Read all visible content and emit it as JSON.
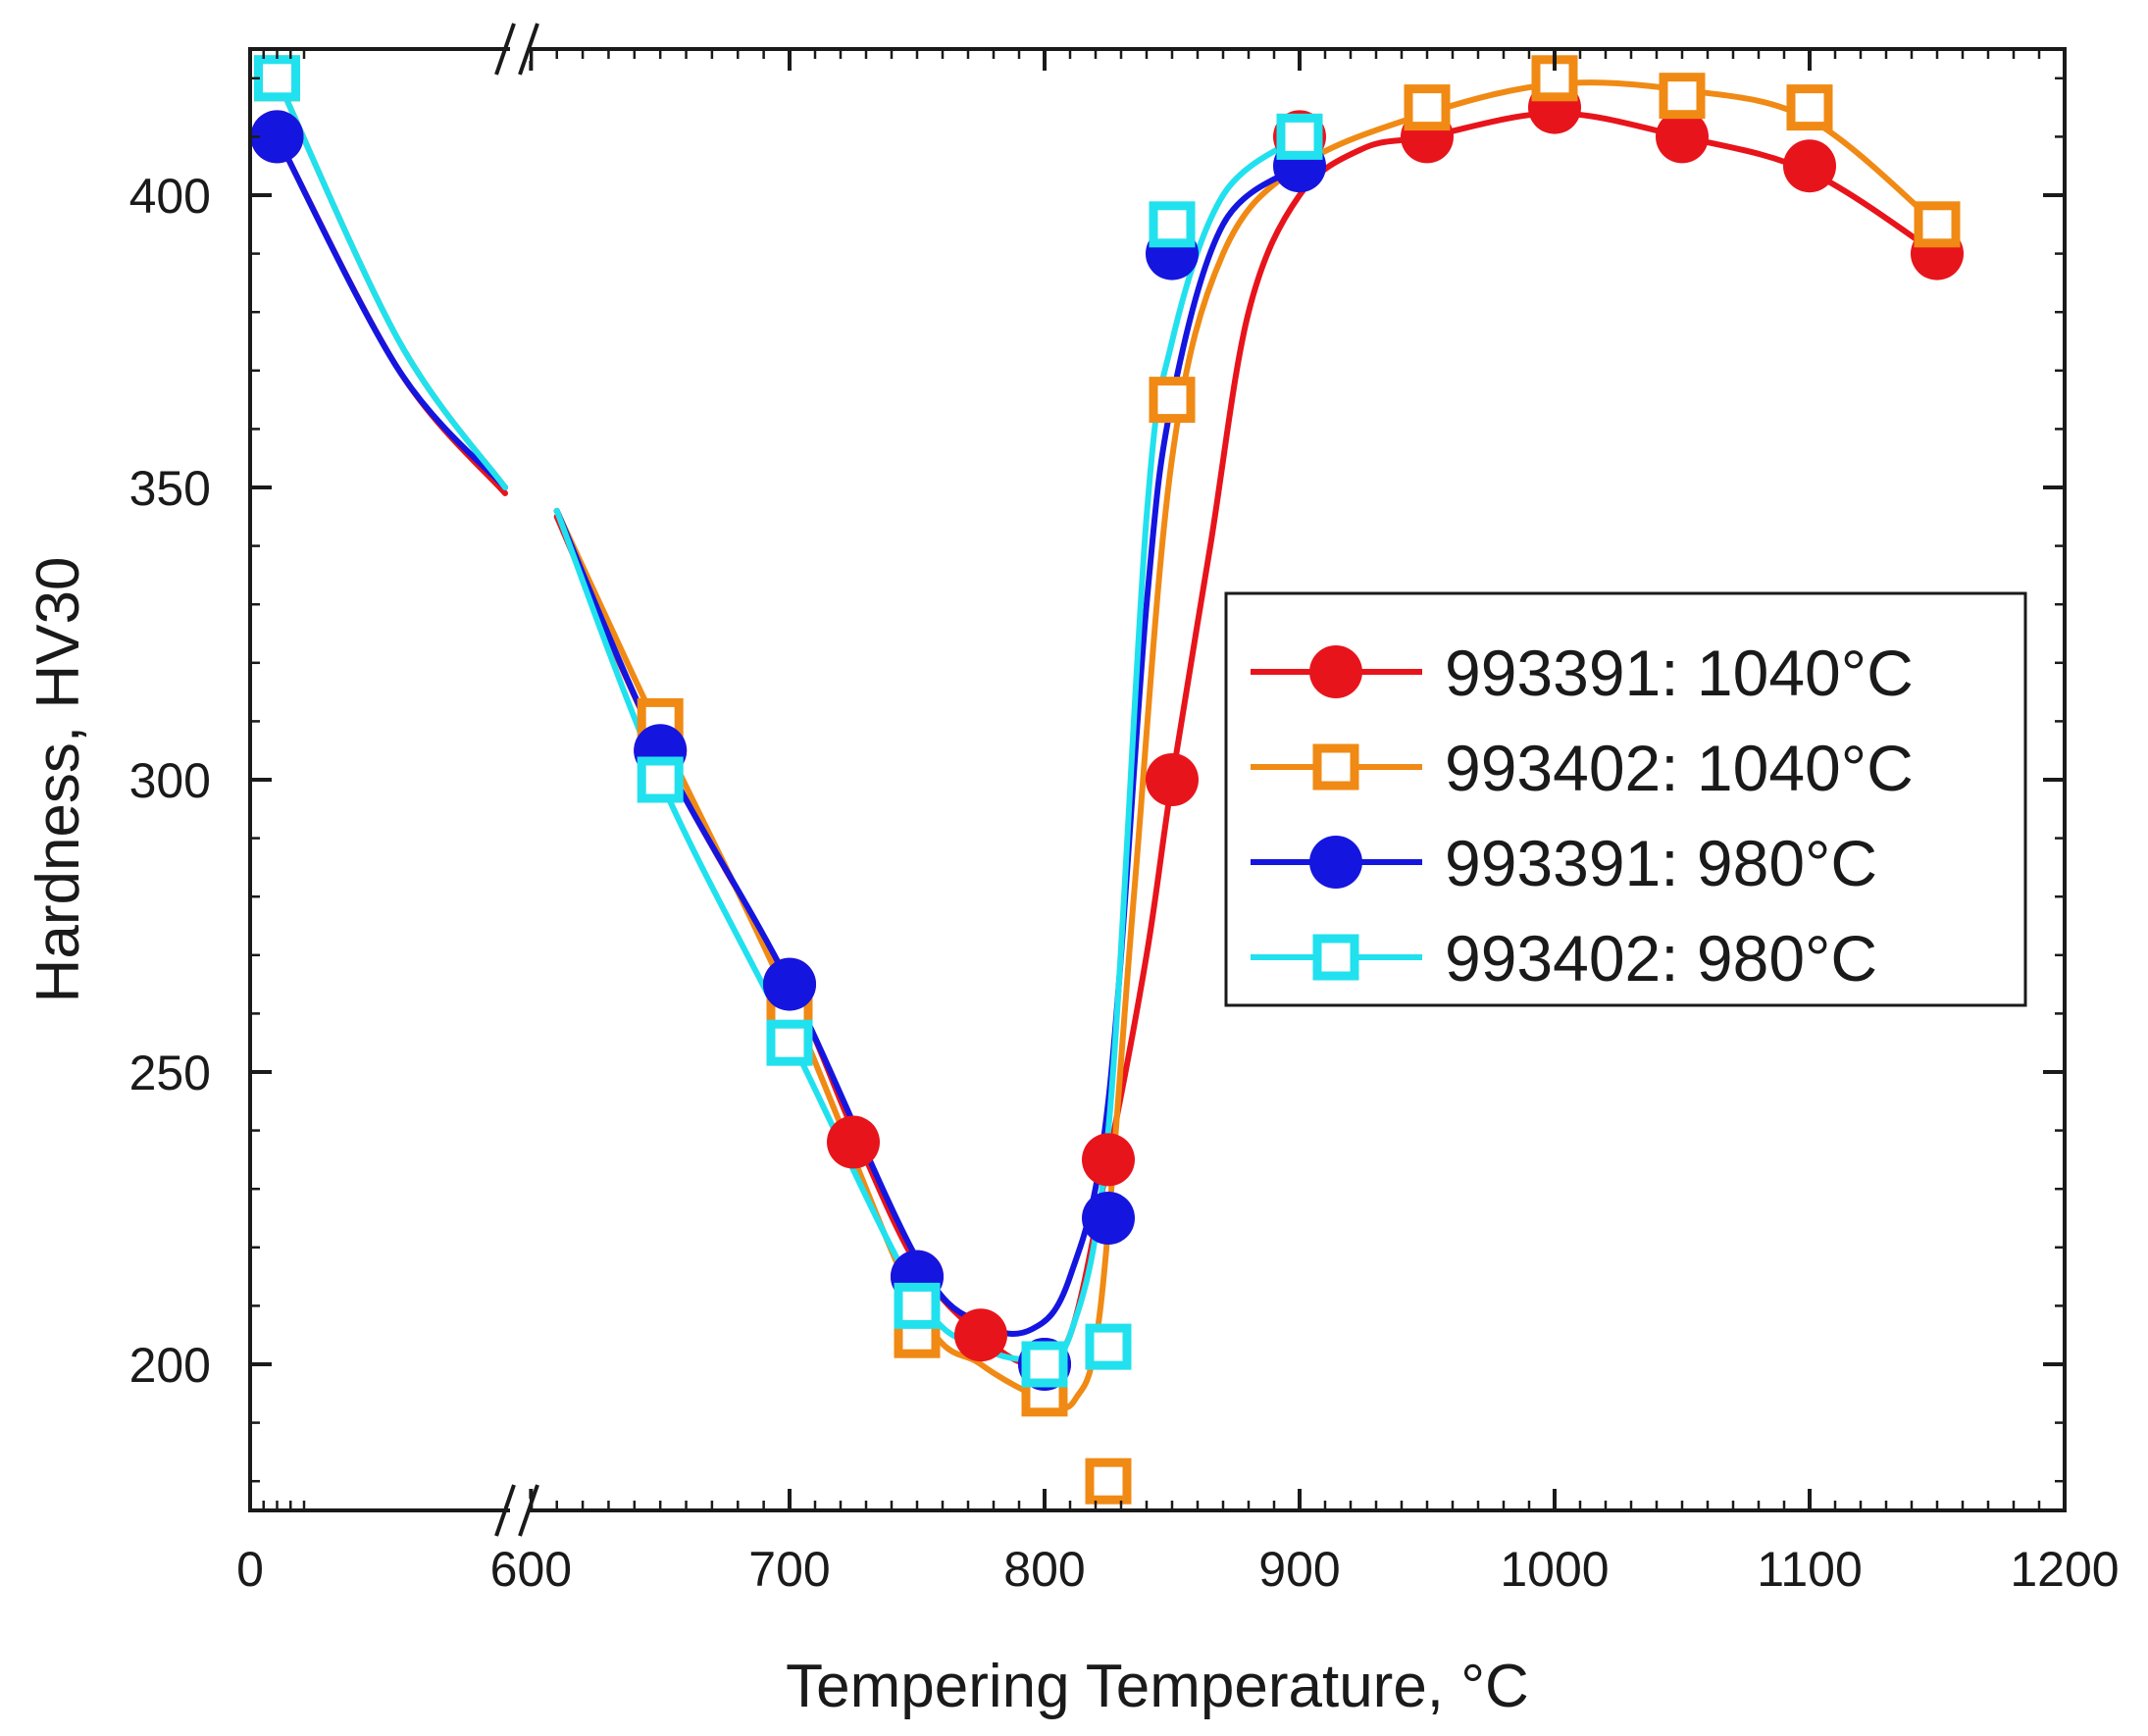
{
  "chart_data": {
    "type": "line",
    "title": "",
    "xlabel": "Tempering Temperature, °C",
    "ylabel": "Hardness, HV30",
    "xlim": [
      0,
      1200
    ],
    "ylim": [
      175,
      425
    ],
    "axis_break": {
      "axis": "x",
      "from": 40,
      "to": 590
    },
    "x_ticks": [
      {
        "value": 0,
        "label": "0"
      },
      {
        "value": 600,
        "label": "600"
      },
      {
        "value": 700,
        "label": "700"
      },
      {
        "value": 800,
        "label": "800"
      },
      {
        "value": 900,
        "label": "900"
      },
      {
        "value": 1000,
        "label": "1000"
      },
      {
        "value": 1100,
        "label": "1100"
      },
      {
        "value": 1200,
        "label": "1200"
      }
    ],
    "y_ticks": [
      {
        "value": 200,
        "label": "200"
      },
      {
        "value": 250,
        "label": "250"
      },
      {
        "value": 300,
        "label": "300"
      },
      {
        "value": 350,
        "label": "350"
      },
      {
        "value": 400,
        "label": "400"
      }
    ],
    "grid": false,
    "legend_position": "center-right",
    "series": [
      {
        "name": "993391: 1040°C",
        "color": "#e8141b",
        "marker": "filled-circle",
        "points": [
          [
            20,
            410
          ],
          [
            650,
            305
          ],
          [
            700,
            265
          ],
          [
            725,
            238
          ],
          [
            750,
            215
          ],
          [
            775,
            205
          ],
          [
            800,
            200
          ],
          [
            825,
            235
          ],
          [
            850,
            300
          ],
          [
            900,
            410
          ],
          [
            950,
            410
          ],
          [
            1000,
            415
          ],
          [
            1050,
            410
          ],
          [
            1100,
            405
          ],
          [
            1150,
            390
          ]
        ],
        "curve": [
          [
            20,
            410
          ],
          [
            300,
            370
          ],
          [
            590,
            349
          ],
          [
            610,
            345
          ],
          [
            650,
            305
          ],
          [
            700,
            265
          ],
          [
            725,
            240
          ],
          [
            750,
            217
          ],
          [
            775,
            205
          ],
          [
            795,
            200
          ],
          [
            810,
            205
          ],
          [
            825,
            235
          ],
          [
            840,
            270
          ],
          [
            850,
            300
          ],
          [
            865,
            340
          ],
          [
            880,
            380
          ],
          [
            900,
            400
          ],
          [
            925,
            408
          ],
          [
            950,
            410
          ],
          [
            1000,
            414
          ],
          [
            1050,
            410
          ],
          [
            1100,
            404
          ],
          [
            1150,
            390
          ]
        ]
      },
      {
        "name": "993402: 1040°C",
        "color": "#f08a14",
        "marker": "open-square",
        "points": [
          [
            20,
            420
          ],
          [
            650,
            310
          ],
          [
            700,
            260
          ],
          [
            750,
            205
          ],
          [
            800,
            195
          ],
          [
            825,
            180
          ],
          [
            850,
            365
          ],
          [
            900,
            410
          ],
          [
            950,
            415
          ],
          [
            1000,
            420
          ],
          [
            1050,
            417
          ],
          [
            1100,
            415
          ],
          [
            1150,
            395
          ]
        ],
        "curve": [
          [
            20,
            420
          ],
          [
            300,
            375
          ],
          [
            590,
            350
          ],
          [
            610,
            346
          ],
          [
            650,
            308
          ],
          [
            700,
            262
          ],
          [
            750,
            210
          ],
          [
            775,
            200
          ],
          [
            800,
            194
          ],
          [
            812,
            194
          ],
          [
            822,
            210
          ],
          [
            835,
            280
          ],
          [
            850,
            355
          ],
          [
            870,
            390
          ],
          [
            900,
            405
          ],
          [
            950,
            414
          ],
          [
            1000,
            419
          ],
          [
            1050,
            418
          ],
          [
            1100,
            413
          ],
          [
            1150,
            395
          ]
        ]
      },
      {
        "name": "993391: 980°C",
        "color": "#1515e0",
        "marker": "filled-circle",
        "points": [
          [
            20,
            410
          ],
          [
            650,
            305
          ],
          [
            700,
            265
          ],
          [
            750,
            215
          ],
          [
            800,
            200
          ],
          [
            825,
            225
          ],
          [
            850,
            390
          ],
          [
            900,
            405
          ]
        ],
        "curve": [
          [
            20,
            410
          ],
          [
            300,
            370
          ],
          [
            590,
            350
          ],
          [
            610,
            346
          ],
          [
            650,
            305
          ],
          [
            700,
            265
          ],
          [
            750,
            218
          ],
          [
            775,
            207
          ],
          [
            795,
            206
          ],
          [
            810,
            215
          ],
          [
            825,
            245
          ],
          [
            840,
            330
          ],
          [
            850,
            365
          ],
          [
            870,
            395
          ],
          [
            900,
            405
          ]
        ]
      },
      {
        "name": "993402: 980°C",
        "color": "#22e1ee",
        "marker": "open-square",
        "points": [
          [
            20,
            420
          ],
          [
            650,
            300
          ],
          [
            700,
            255
          ],
          [
            750,
            210
          ],
          [
            800,
            200
          ],
          [
            825,
            203
          ],
          [
            850,
            395
          ],
          [
            900,
            410
          ]
        ],
        "curve": [
          [
            20,
            420
          ],
          [
            300,
            375
          ],
          [
            590,
            350
          ],
          [
            610,
            346
          ],
          [
            650,
            300
          ],
          [
            700,
            256
          ],
          [
            750,
            212
          ],
          [
            775,
            203
          ],
          [
            795,
            201
          ],
          [
            810,
            205
          ],
          [
            825,
            240
          ],
          [
            840,
            345
          ],
          [
            850,
            375
          ],
          [
            870,
            400
          ],
          [
            900,
            410
          ]
        ]
      }
    ]
  }
}
